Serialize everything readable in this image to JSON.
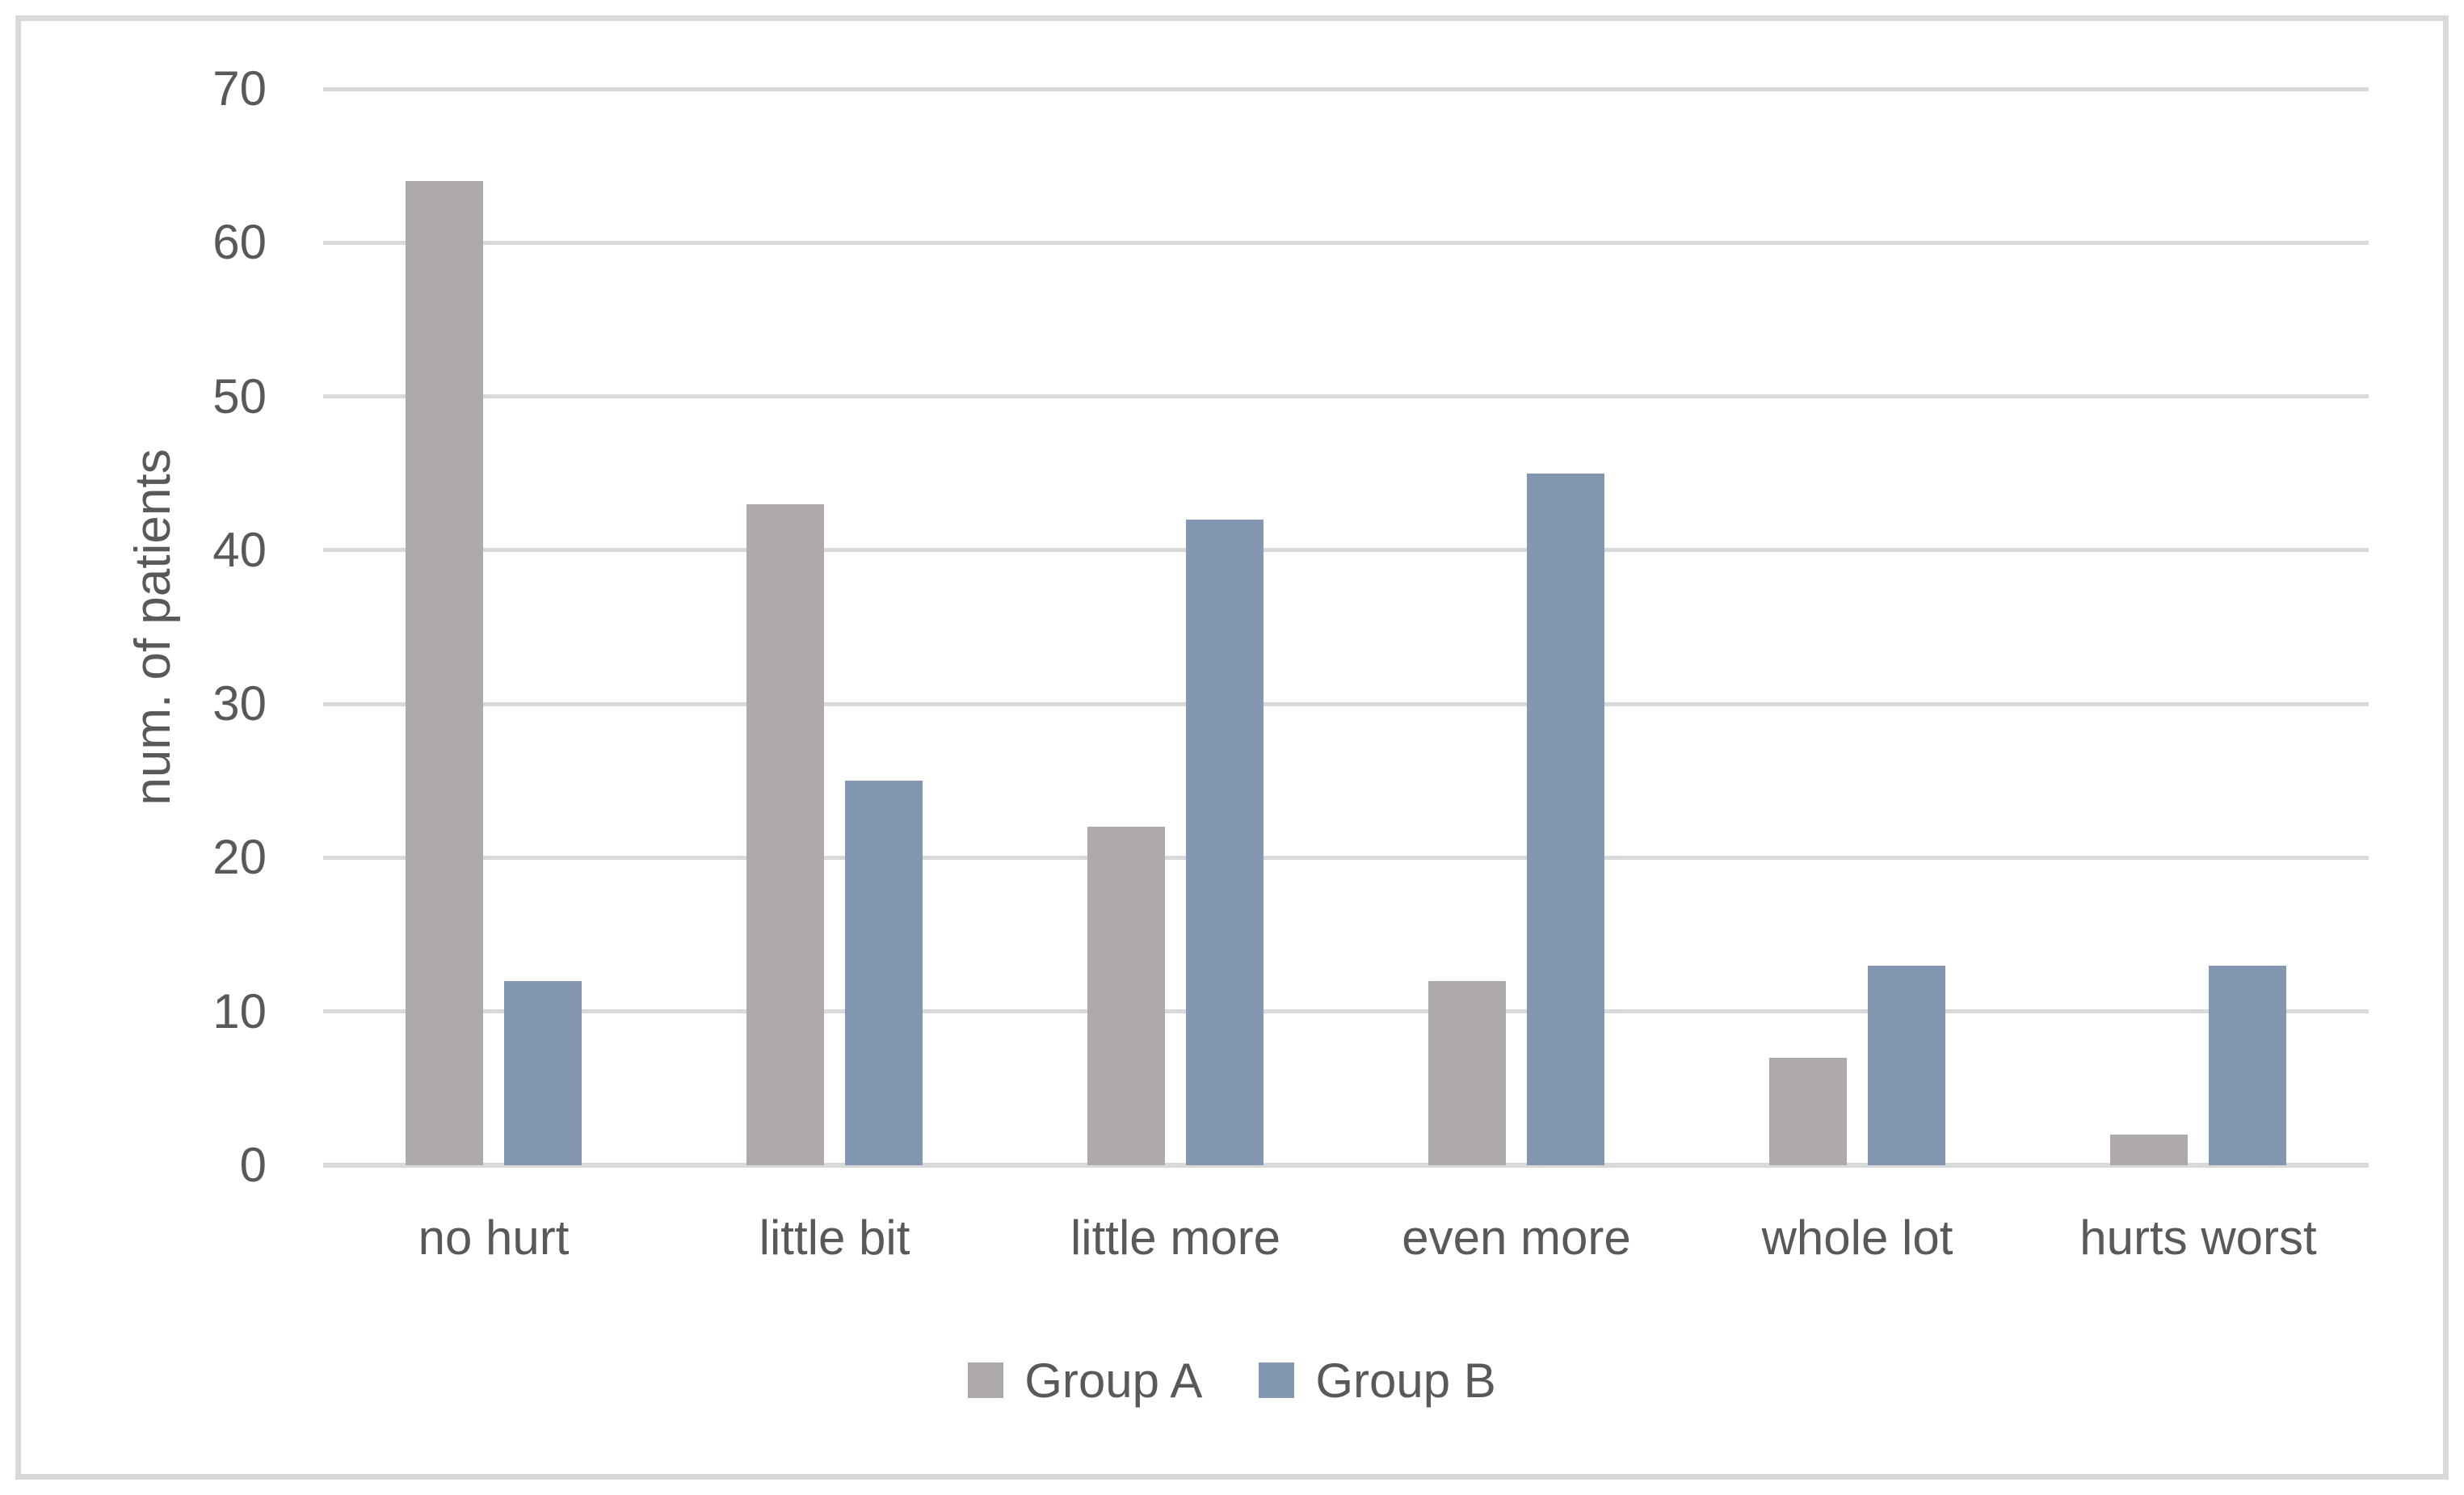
{
  "chart_data": {
    "type": "bar",
    "categories": [
      "no hurt",
      "little bit",
      "little more",
      "even more",
      "whole lot",
      "hurts worst"
    ],
    "series": [
      {
        "name": "Group A",
        "color": "#aeaaa9",
        "values": [
          64,
          43,
          22,
          12,
          7,
          2
        ]
      },
      {
        "name": "Group B",
        "color": "#8497b0",
        "values": [
          12,
          25,
          42,
          45,
          13,
          13
        ]
      }
    ],
    "title": "",
    "xlabel": "",
    "ylabel": "num. of patients",
    "ylim": [
      0,
      70
    ],
    "yticks": [
      0,
      10,
      20,
      30,
      40,
      50,
      60,
      70
    ],
    "grid": true,
    "legend_position": "bottom",
    "colors": {
      "gridline": "#d9d9d9",
      "axis_line": "#d9d9d9",
      "frame_border": "#d9d9d9",
      "text": "#595959",
      "background": "#ffffff"
    }
  }
}
